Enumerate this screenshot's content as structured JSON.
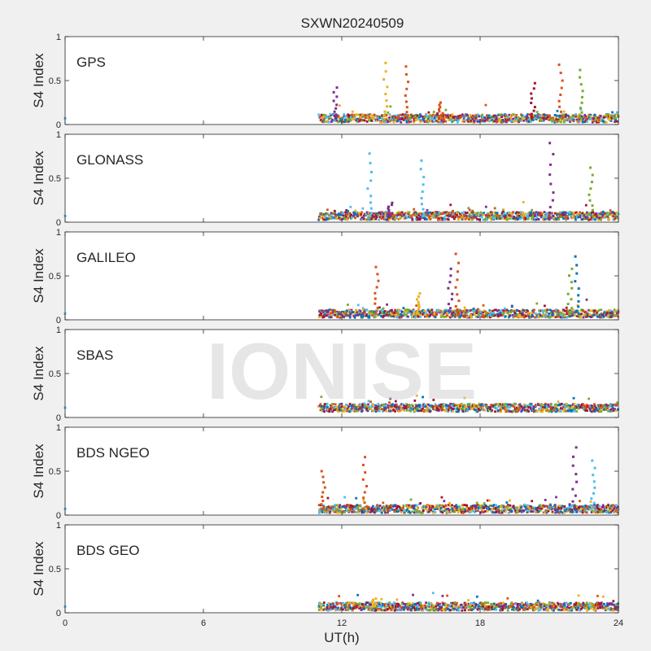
{
  "chart_data": {
    "type": "scatter",
    "title": "SXWN20240509",
    "xlabel": "UT(h)",
    "ylabel": "S4 Index",
    "xlim": [
      0,
      24
    ],
    "ylim": [
      0,
      1
    ],
    "xticks": [
      0,
      6,
      12,
      18,
      24
    ],
    "yticks": [
      0,
      0.5,
      1
    ],
    "watermark": "IONISE",
    "colors": [
      "#0072BD",
      "#D95319",
      "#EDB120",
      "#7E2F8E",
      "#77AC30",
      "#4DBEEE",
      "#A2142F"
    ],
    "panels": [
      {
        "name": "GPS",
        "base": 0.07,
        "start": 11.0,
        "spikes": [
          {
            "x": 11.7,
            "y": 0.42,
            "c": 3
          },
          {
            "x": 13.9,
            "y": 0.7,
            "c": 2
          },
          {
            "x": 14.8,
            "y": 0.66,
            "c": 1
          },
          {
            "x": 16.3,
            "y": 0.25,
            "c": 1
          },
          {
            "x": 20.3,
            "y": 0.47,
            "c": 6
          },
          {
            "x": 21.5,
            "y": 0.68,
            "c": 1
          },
          {
            "x": 22.4,
            "y": 0.62,
            "c": 4
          }
        ]
      },
      {
        "name": "GLONASS",
        "base": 0.07,
        "start": 11.0,
        "spikes": [
          {
            "x": 13.2,
            "y": 0.78,
            "c": 5
          },
          {
            "x": 14.1,
            "y": 0.22,
            "c": 3
          },
          {
            "x": 15.5,
            "y": 0.7,
            "c": 5
          },
          {
            "x": 21.1,
            "y": 0.9,
            "c": 3
          },
          {
            "x": 22.8,
            "y": 0.62,
            "c": 4
          }
        ]
      },
      {
        "name": "GALILEO",
        "base": 0.07,
        "start": 11.0,
        "spikes": [
          {
            "x": 13.5,
            "y": 0.6,
            "c": 1
          },
          {
            "x": 15.3,
            "y": 0.3,
            "c": 2
          },
          {
            "x": 16.7,
            "y": 0.58,
            "c": 3
          },
          {
            "x": 17.0,
            "y": 0.75,
            "c": 1
          },
          {
            "x": 21.9,
            "y": 0.58,
            "c": 4
          },
          {
            "x": 22.2,
            "y": 0.72,
            "c": 0
          }
        ]
      },
      {
        "name": "SBAS",
        "base": 0.11,
        "start": 11.0,
        "spikes": []
      },
      {
        "name": "BDS NGEO",
        "base": 0.07,
        "start": 11.0,
        "spikes": [
          {
            "x": 11.2,
            "y": 0.5,
            "c": 1
          },
          {
            "x": 13.0,
            "y": 0.66,
            "c": 1
          },
          {
            "x": 22.1,
            "y": 0.77,
            "c": 3
          },
          {
            "x": 22.9,
            "y": 0.62,
            "c": 5
          }
        ]
      },
      {
        "name": "BDS GEO",
        "base": 0.07,
        "start": 11.0,
        "spikes": [
          {
            "x": 13.4,
            "y": 0.16,
            "c": 2
          }
        ]
      }
    ]
  }
}
